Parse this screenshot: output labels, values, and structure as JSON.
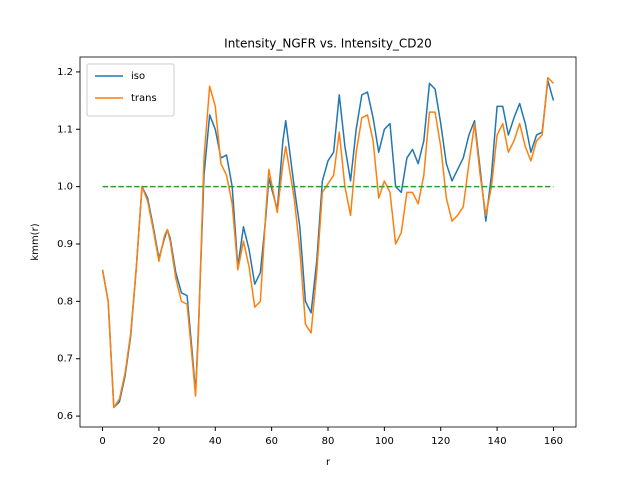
{
  "chart_data": {
    "type": "line",
    "title": "Intensity_NGFR vs. Intensity_CD20",
    "xlabel": "r",
    "ylabel": "kmm(r)",
    "x": [
      0,
      2,
      4,
      6,
      8,
      10,
      12,
      14,
      16,
      18,
      20,
      22,
      23,
      24,
      26,
      28,
      30,
      32,
      33,
      34,
      36,
      38,
      40,
      42,
      44,
      46,
      48,
      50,
      52,
      54,
      56,
      58,
      59,
      62,
      64,
      65,
      68,
      70,
      72,
      74,
      76,
      78,
      80,
      82,
      84,
      86,
      88,
      90,
      92,
      94,
      96,
      98,
      100,
      102,
      104,
      106,
      108,
      110,
      112,
      114,
      116,
      118,
      120,
      122,
      124,
      126,
      128,
      130,
      132,
      134,
      136,
      138,
      140,
      142,
      144,
      146,
      148,
      150,
      152,
      154,
      156,
      158,
      160
    ],
    "series": [
      {
        "name": "iso",
        "color": "#1f77b4",
        "values": [
          0.855,
          0.8,
          0.615,
          0.625,
          0.67,
          0.74,
          0.86,
          1.0,
          0.98,
          0.93,
          0.875,
          0.91,
          0.925,
          0.91,
          0.85,
          0.815,
          0.81,
          0.7,
          0.64,
          0.75,
          1.02,
          1.125,
          1.1,
          1.05,
          1.055,
          1.0,
          0.86,
          0.93,
          0.89,
          0.83,
          0.85,
          0.95,
          1.015,
          0.96,
          1.08,
          1.115,
          1.0,
          0.93,
          0.8,
          0.78,
          0.87,
          1.01,
          1.045,
          1.06,
          1.16,
          1.07,
          1.01,
          1.1,
          1.16,
          1.165,
          1.12,
          1.06,
          1.1,
          1.11,
          1.0,
          0.99,
          1.05,
          1.065,
          1.04,
          1.08,
          1.18,
          1.17,
          1.11,
          1.04,
          1.01,
          1.03,
          1.05,
          1.09,
          1.115,
          1.03,
          0.94,
          1.02,
          1.14,
          1.14,
          1.09,
          1.12,
          1.145,
          1.11,
          1.06,
          1.09,
          1.095,
          1.185,
          1.15
        ]
      },
      {
        "name": "trans",
        "color": "#ff7f0e",
        "values": [
          0.855,
          0.8,
          0.615,
          0.63,
          0.675,
          0.745,
          0.86,
          1.0,
          0.975,
          0.925,
          0.87,
          0.915,
          0.925,
          0.905,
          0.84,
          0.8,
          0.795,
          0.69,
          0.635,
          0.74,
          1.05,
          1.175,
          1.14,
          1.04,
          1.02,
          0.97,
          0.855,
          0.905,
          0.86,
          0.79,
          0.8,
          0.96,
          1.03,
          0.955,
          1.04,
          1.07,
          0.98,
          0.89,
          0.76,
          0.745,
          0.85,
          0.99,
          1.005,
          1.02,
          1.095,
          1.0,
          0.95,
          1.06,
          1.12,
          1.125,
          1.08,
          0.98,
          1.01,
          0.99,
          0.9,
          0.92,
          0.99,
          0.99,
          0.97,
          1.02,
          1.13,
          1.13,
          1.07,
          0.98,
          0.94,
          0.95,
          0.965,
          1.04,
          1.11,
          1.02,
          0.95,
          1.0,
          1.09,
          1.11,
          1.06,
          1.08,
          1.11,
          1.07,
          1.045,
          1.08,
          1.09,
          1.19,
          1.18
        ]
      },
      {
        "color": "#2ca02c",
        "dashed": true,
        "x": [
          0,
          160
        ],
        "values": [
          1,
          1
        ]
      }
    ],
    "xlim": [
      -8,
      168
    ],
    "ylim": [
      0.581,
      1.226
    ],
    "xticks": [
      0,
      20,
      40,
      60,
      80,
      100,
      120,
      140,
      160
    ],
    "yticks": [
      0.6,
      0.7,
      0.8,
      0.9,
      {
        "value": 1,
        "label": "1.0"
      },
      1.1,
      1.2
    ],
    "grid": false,
    "legend": "upper left"
  }
}
